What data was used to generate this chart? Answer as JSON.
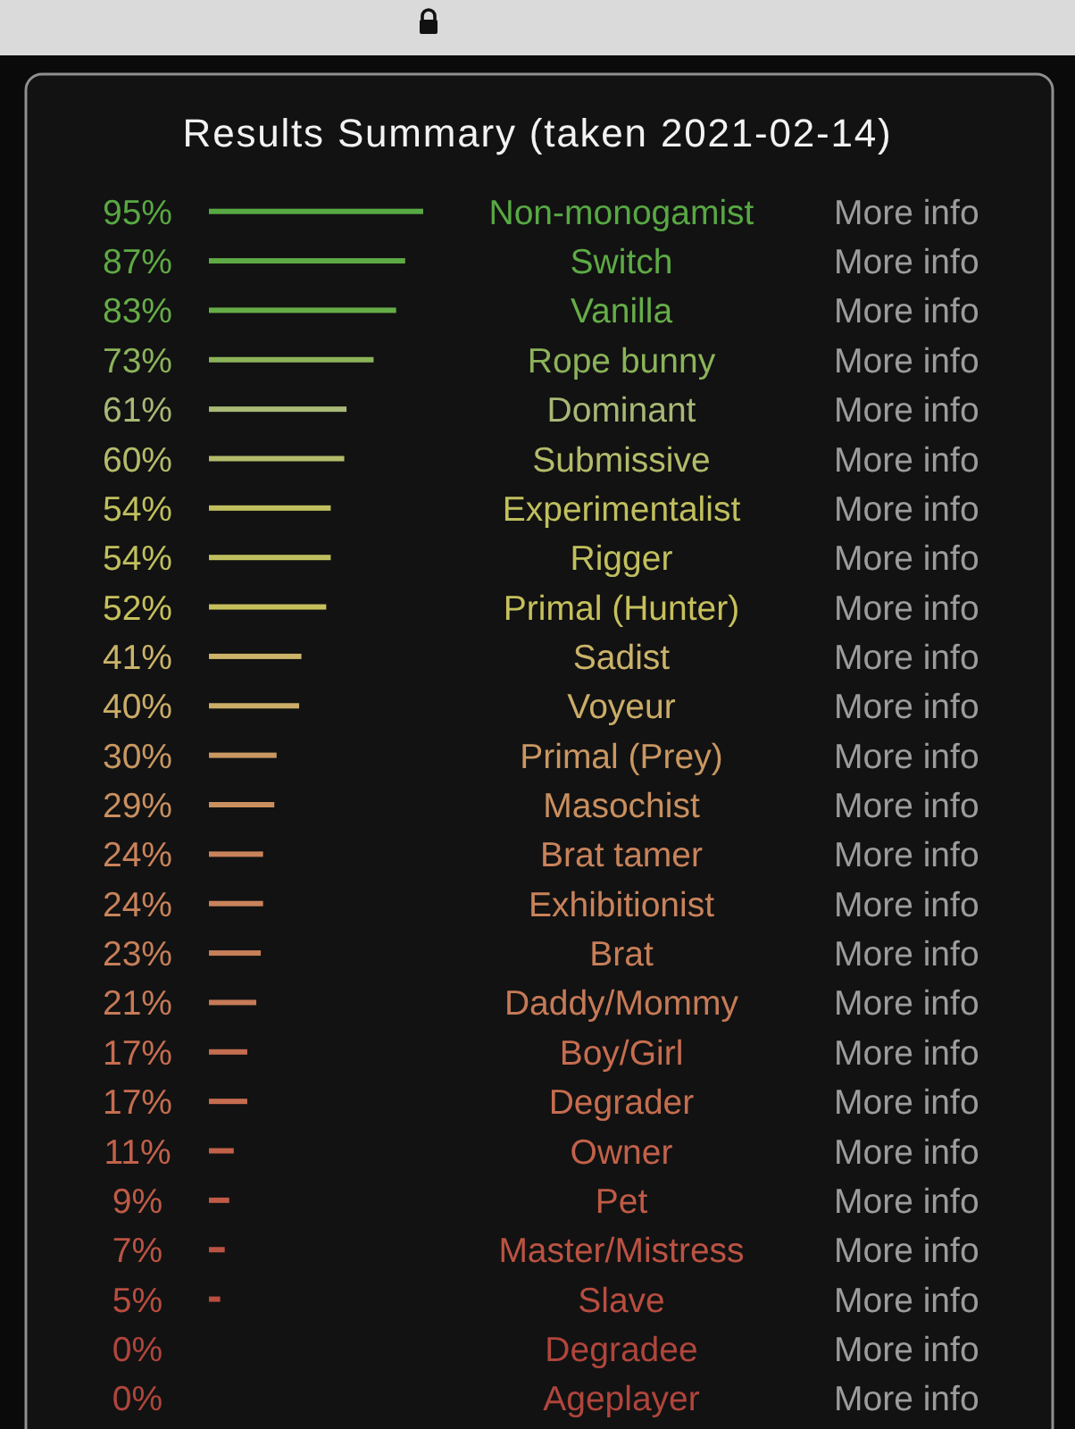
{
  "chart_data": {
    "type": "bar",
    "orientation": "horizontal",
    "title": "Results Summary (taken 2021-02-14)",
    "categories": [
      "Non-monogamist",
      "Switch",
      "Vanilla",
      "Rope bunny",
      "Dominant",
      "Submissive",
      "Experimentalist",
      "Rigger",
      "Primal (Hunter)",
      "Sadist",
      "Voyeur",
      "Primal (Prey)",
      "Masochist",
      "Brat tamer",
      "Exhibitionist",
      "Brat",
      "Daddy/Mommy",
      "Boy/Girl",
      "Degrader",
      "Owner",
      "Pet",
      "Master/Mistress",
      "Slave",
      "Degradee",
      "Ageplayer"
    ],
    "values": [
      95,
      87,
      83,
      73,
      61,
      60,
      54,
      54,
      52,
      41,
      40,
      30,
      29,
      24,
      24,
      23,
      21,
      17,
      17,
      11,
      9,
      7,
      5,
      0,
      0
    ],
    "value_labels": [
      "95%",
      "87%",
      "83%",
      "73%",
      "61%",
      "60%",
      "54%",
      "54%",
      "52%",
      "41%",
      "40%",
      "30%",
      "29%",
      "24%",
      "24%",
      "23%",
      "21%",
      "17%",
      "17%",
      "11%",
      "9%",
      "7%",
      "5%",
      "0%",
      "0%"
    ],
    "colors": [
      "#58a843",
      "#5eaa45",
      "#66ad48",
      "#8cb35a",
      "#a8b876",
      "#b4bb6a",
      "#c0bf5e",
      "#c0bf5e",
      "#c6c05c",
      "#cbb36a",
      "#cbad68",
      "#c99762",
      "#c98f5f",
      "#c9835b",
      "#c9835b",
      "#c77f59",
      "#c67a57",
      "#c56d50",
      "#c56d50",
      "#c2614a",
      "#bf5b46",
      "#bb5343",
      "#b84d40",
      "#b0453c",
      "#b0453c"
    ],
    "tick_labels": "y",
    "annotations": [
      "More info",
      "More info",
      "More info",
      "More info",
      "More info",
      "More info",
      "More info",
      "More info",
      "More info",
      "More info",
      "More info",
      "More info",
      "More info",
      "More info",
      "More info",
      "More info",
      "More info",
      "More info",
      "More info",
      "More info",
      "More info",
      "More info",
      "More info",
      "More info",
      "More info"
    ]
  }
}
